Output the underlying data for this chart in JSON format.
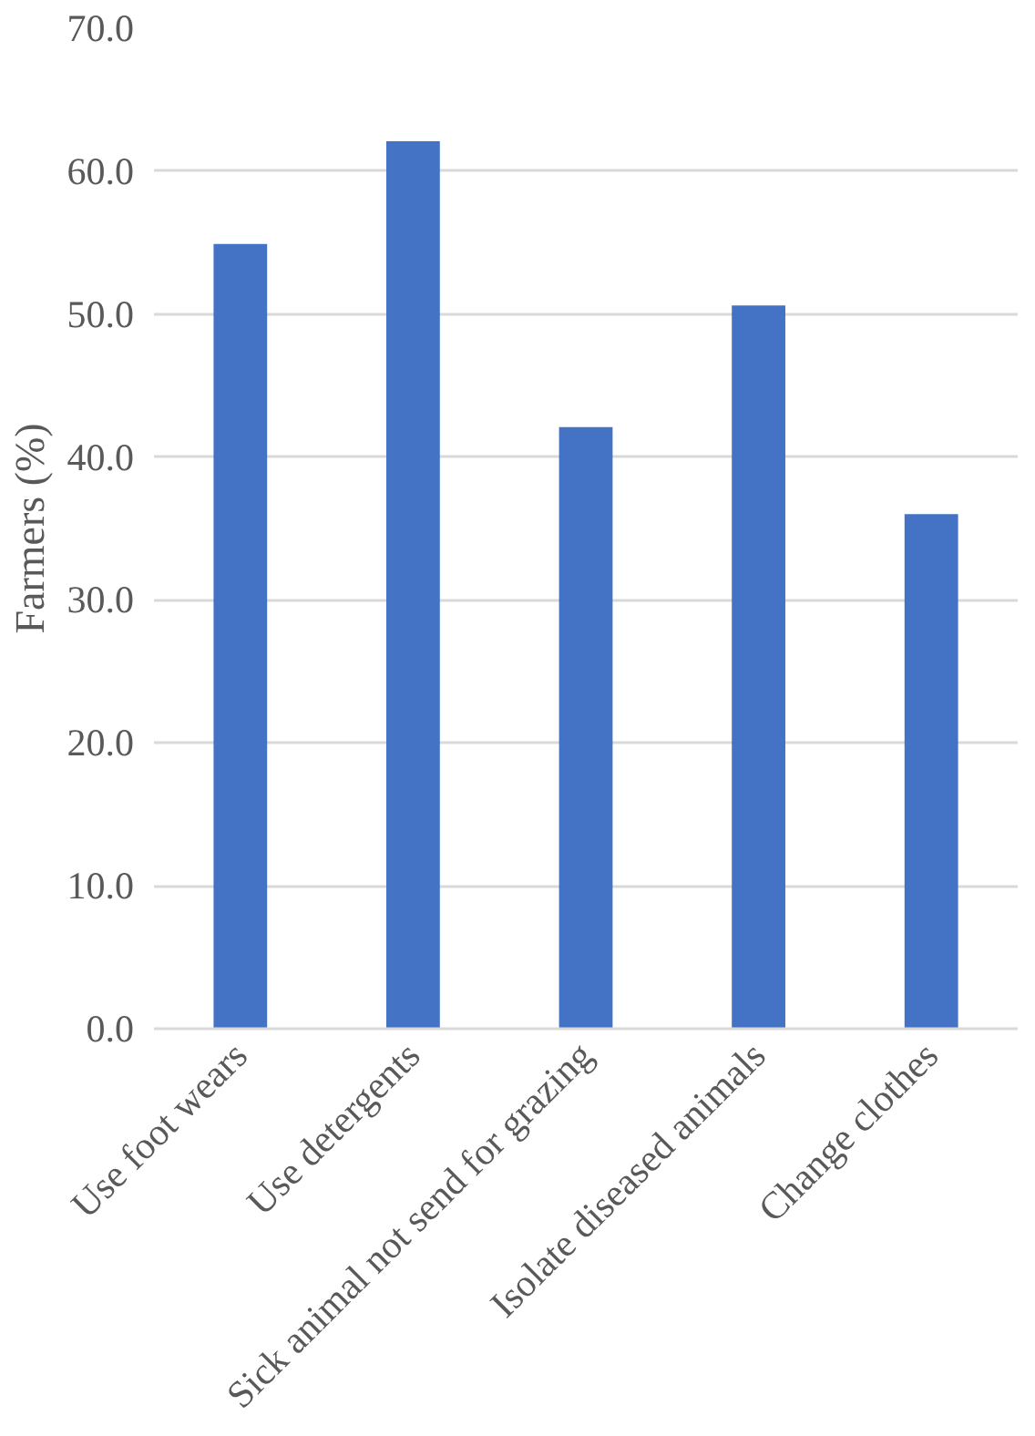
{
  "chart_data": {
    "type": "bar",
    "ylabel": "Farmers (%)",
    "categories": [
      "Use foot wears",
      "Use detergents",
      "Sick animal not send for grazing",
      "Isolate diseased animals",
      "Change clothes"
    ],
    "values": [
      54.9,
      62.1,
      42.1,
      50.6,
      36.0
    ],
    "color": "#4472c4",
    "ylim": [
      0,
      70
    ],
    "yticks": [
      {
        "value": 0,
        "label": "0.0"
      },
      {
        "value": 10,
        "label": "10.0"
      },
      {
        "value": 20,
        "label": "20.0"
      },
      {
        "value": 30,
        "label": "30.0"
      },
      {
        "value": 40,
        "label": "40.0"
      },
      {
        "value": 50,
        "label": "50.0"
      },
      {
        "value": 60,
        "label": "60.0"
      },
      {
        "value": 70,
        "label": "70.0"
      }
    ],
    "grid": "y",
    "legend": false
  }
}
